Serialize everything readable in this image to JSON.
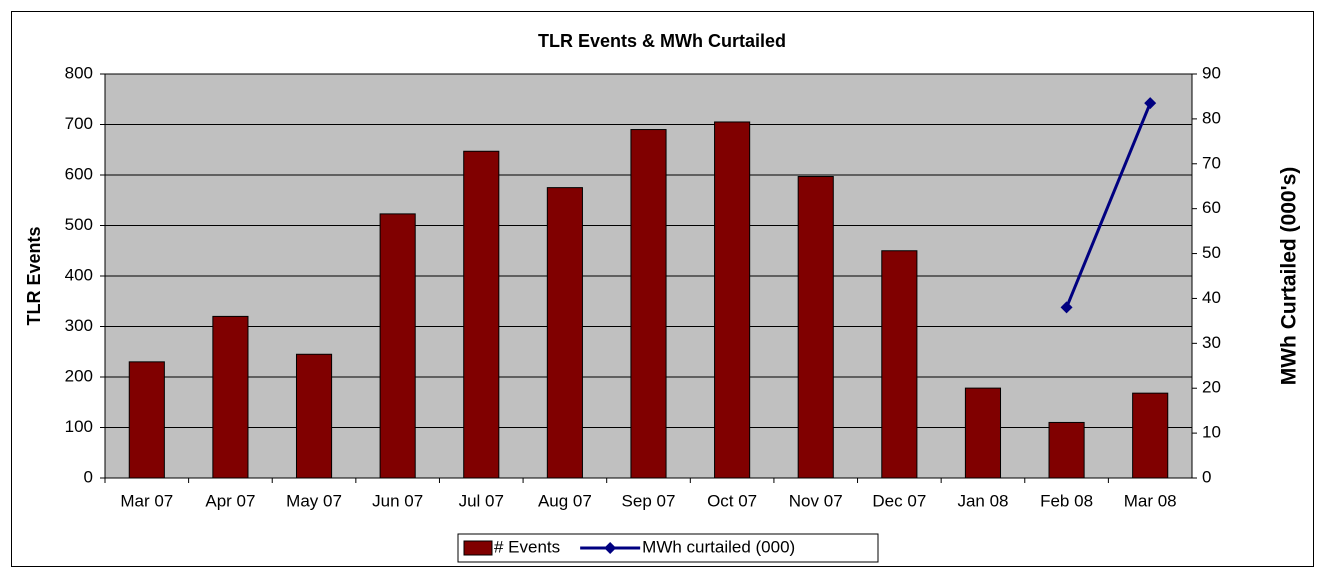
{
  "chart_data": {
    "type": "bar",
    "title": "TLR Events & MWh Curtailed",
    "y_label": "TLR Events",
    "y2_label": "MWh Curtailed (000's)",
    "categories": [
      "Mar 07",
      "Apr 07",
      "May 07",
      "Jun 07",
      "Jul 07",
      "Aug 07",
      "Sep 07",
      "Oct 07",
      "Nov 07",
      "Dec 07",
      "Jan 08",
      "Feb 08",
      "Mar 08"
    ],
    "series": [
      {
        "name": "# Events",
        "type": "bar",
        "color": "#800000",
        "values": [
          230,
          320,
          245,
          523,
          647,
          575,
          690,
          705,
          597,
          450,
          178,
          110,
          168
        ]
      },
      {
        "name": "MWh curtailed (000)",
        "type": "line",
        "axis": "y2",
        "color": "#000080",
        "values": [
          null,
          null,
          null,
          null,
          null,
          null,
          null,
          null,
          null,
          null,
          null,
          38,
          83.5
        ]
      }
    ],
    "ylim": [
      0,
      800
    ],
    "yticks": [
      0,
      100,
      200,
      300,
      400,
      500,
      600,
      700,
      800
    ],
    "y2lim": [
      0,
      90
    ],
    "y2ticks": [
      0,
      10,
      20,
      30,
      40,
      50,
      60,
      70,
      80,
      90
    ],
    "grid": true,
    "legend": "bottom",
    "plot_background": "#c0c0c0"
  }
}
